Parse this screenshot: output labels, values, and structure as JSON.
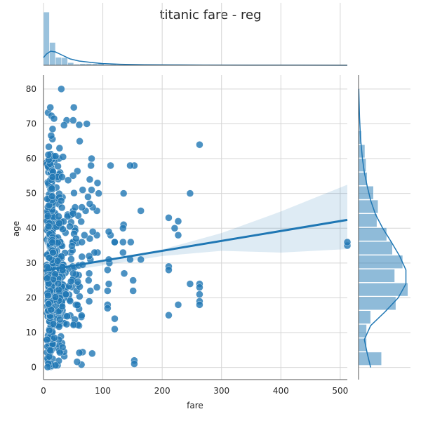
{
  "chart_data": {
    "type": "scatter",
    "title": "titanic fare - reg",
    "xlabel": "fare",
    "ylabel": "age",
    "xlim": [
      0,
      512
    ],
    "ylim": [
      -3.5,
      84
    ],
    "xticks": [
      0,
      100,
      200,
      300,
      400,
      500
    ],
    "yticks": [
      0,
      10,
      20,
      30,
      40,
      50,
      60,
      70,
      80
    ],
    "grid": true,
    "colors": {
      "points": "#1f77b4",
      "line": "#1f77b4",
      "band": "#1f77b4",
      "hist": "#1f77b4"
    },
    "points_seed": 4,
    "outlier_points": [
      [
        512,
        35
      ],
      [
        512,
        36
      ],
      [
        263,
        64
      ],
      [
        263,
        24
      ],
      [
        263,
        23
      ],
      [
        263,
        21
      ],
      [
        263,
        19
      ],
      [
        263,
        18
      ],
      [
        247,
        50
      ],
      [
        247,
        24
      ],
      [
        227,
        42
      ],
      [
        227,
        38
      ],
      [
        227,
        18
      ],
      [
        211,
        43
      ],
      [
        211,
        29
      ],
      [
        211,
        28
      ],
      [
        211,
        15
      ],
      [
        221,
        40
      ],
      [
        164,
        45
      ],
      [
        164,
        31
      ],
      [
        153,
        58
      ],
      [
        153,
        2
      ],
      [
        153,
        1
      ],
      [
        151,
        25
      ],
      [
        146,
        58
      ],
      [
        147,
        36
      ],
      [
        146,
        31
      ],
      [
        151,
        22
      ],
      [
        135,
        50
      ],
      [
        135,
        41
      ],
      [
        134,
        40
      ],
      [
        134,
        36
      ],
      [
        134,
        33
      ],
      [
        136,
        27
      ],
      [
        120,
        36
      ],
      [
        120,
        36
      ],
      [
        120,
        14
      ],
      [
        120,
        11
      ],
      [
        113,
        58
      ],
      [
        113,
        38
      ],
      [
        111,
        30
      ],
      [
        110,
        39
      ],
      [
        110,
        31
      ],
      [
        110,
        24
      ],
      [
        108,
        18
      ],
      [
        108,
        17
      ],
      [
        108,
        22
      ],
      [
        108,
        28
      ],
      [
        91,
        53
      ],
      [
        90,
        45
      ],
      [
        93,
        50
      ],
      [
        91,
        33
      ],
      [
        90,
        38
      ],
      [
        90,
        23
      ],
      [
        86,
        33
      ],
      [
        83,
        46
      ],
      [
        83,
        39
      ],
      [
        82,
        4
      ],
      [
        81,
        51
      ],
      [
        81,
        60
      ],
      [
        80,
        58
      ],
      [
        79,
        31
      ],
      [
        79,
        22
      ],
      [
        78,
        54
      ],
      [
        78,
        47
      ],
      [
        78,
        37
      ],
      [
        77,
        32
      ],
      [
        77,
        27
      ],
      [
        77,
        19
      ],
      [
        76,
        25
      ],
      [
        75,
        49
      ],
      [
        73,
        70
      ],
      [
        71,
        45
      ],
      [
        69,
        38
      ],
      [
        66,
        51
      ],
      [
        61,
        65
      ],
      [
        57,
        18
      ],
      [
        53,
        40
      ],
      [
        50,
        71
      ],
      [
        50,
        45
      ],
      [
        49,
        29
      ],
      [
        39,
        71
      ],
      [
        37,
        23
      ],
      [
        30,
        80
      ],
      [
        27,
        63
      ],
      [
        26,
        60
      ],
      [
        28,
        56
      ]
    ],
    "regression": {
      "slope": 0.0285,
      "intercept": 27.8,
      "ci_at_xmax": [
        34.0,
        52.5
      ],
      "ci_at_x0": [
        26.7,
        28.9
      ]
    },
    "x_marginal": {
      "bins_width": 10.24,
      "counts": [
        420,
        180,
        62,
        60,
        20,
        8,
        12,
        13,
        12,
        16,
        4,
        6,
        3,
        5,
        3,
        1,
        2,
        2,
        2,
        3,
        0,
        2,
        1,
        0,
        4,
        0,
        0,
        0,
        0,
        0,
        0,
        0,
        0,
        0,
        0,
        0,
        0,
        0,
        0,
        0,
        0,
        0,
        0,
        0,
        0,
        0,
        0,
        0,
        0,
        3
      ],
      "kde": [
        [
          0,
          0.55
        ],
        [
          5,
          0.8
        ],
        [
          12,
          1.0
        ],
        [
          20,
          0.95
        ],
        [
          30,
          0.75
        ],
        [
          45,
          0.45
        ],
        [
          60,
          0.3
        ],
        [
          80,
          0.2
        ],
        [
          100,
          0.12
        ],
        [
          130,
          0.07
        ],
        [
          170,
          0.04
        ],
        [
          220,
          0.025
        ],
        [
          270,
          0.015
        ],
        [
          350,
          0.008
        ],
        [
          430,
          0.004
        ],
        [
          512,
          0.002
        ]
      ]
    },
    "y_marginal": {
      "bin_edges": [
        0.42,
        4.39,
        8.37,
        12.34,
        16.31,
        20.29,
        24.26,
        28.23,
        32.21,
        36.18,
        40.15,
        44.13,
        48.1,
        52.08,
        56.05,
        60.02,
        63.99,
        67.97,
        71.94,
        75.91,
        79.88
      ],
      "counts": [
        40,
        14,
        14,
        21,
        65,
        86,
        63,
        77,
        59,
        49,
        32,
        34,
        26,
        15,
        13,
        11,
        5,
        1,
        1,
        1
      ],
      "kde": [
        [
          0,
          0.25
        ],
        [
          4,
          0.18
        ],
        [
          8,
          0.12
        ],
        [
          12,
          0.25
        ],
        [
          16,
          0.55
        ],
        [
          20,
          0.82
        ],
        [
          24,
          0.98
        ],
        [
          28,
          0.98
        ],
        [
          32,
          0.85
        ],
        [
          36,
          0.68
        ],
        [
          40,
          0.5
        ],
        [
          44,
          0.35
        ],
        [
          48,
          0.25
        ],
        [
          52,
          0.18
        ],
        [
          56,
          0.12
        ],
        [
          60,
          0.08
        ],
        [
          66,
          0.04
        ],
        [
          72,
          0.02
        ],
        [
          80,
          0.005
        ]
      ]
    }
  }
}
